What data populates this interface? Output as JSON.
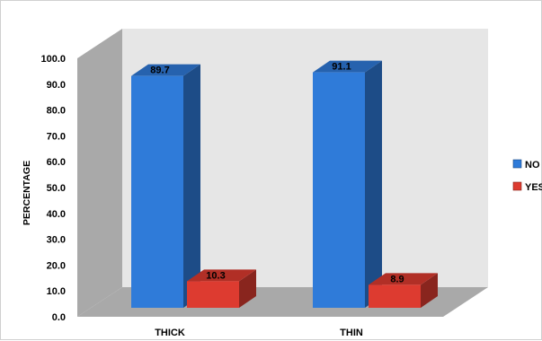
{
  "chart_data": {
    "type": "bar",
    "style": "3d-clustered-column",
    "title": "",
    "xlabel": "",
    "ylabel": "PERCENTAGE",
    "ylim": [
      0,
      100
    ],
    "yticks": [
      "0.0",
      "10.0",
      "20.0",
      "30.0",
      "40.0",
      "50.0",
      "60.0",
      "70.0",
      "80.0",
      "90.0",
      "100.0"
    ],
    "categories": [
      "THICK",
      "THIN"
    ],
    "series": [
      {
        "name": "NO",
        "values": [
          89.7,
          91.1
        ],
        "color": "#2f7bd9",
        "data_labels": [
          "89.7",
          "91.1"
        ]
      },
      {
        "name": "YES",
        "values": [
          10.3,
          8.9
        ],
        "color": "#dd3b30",
        "data_labels": [
          "10.3",
          "8.9"
        ]
      }
    ],
    "grid": false,
    "legend_position": "right"
  }
}
